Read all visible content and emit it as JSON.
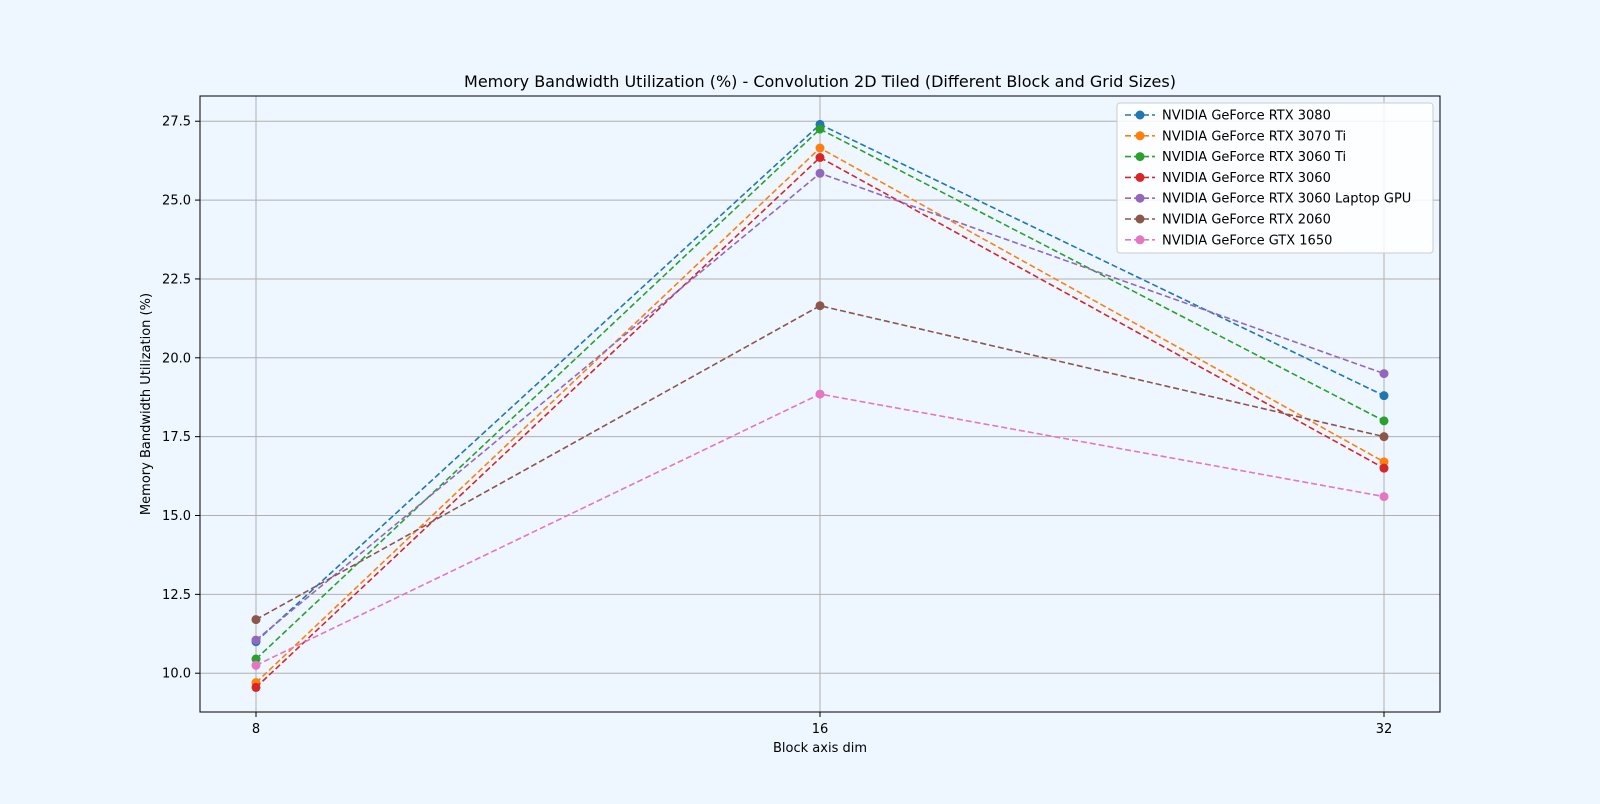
{
  "chart_data": {
    "type": "line",
    "title": "Memory Bandwidth Utilization (%) - Convolution 2D Tiled (Different Block and Grid Sizes)",
    "xlabel": "Block axis dim",
    "ylabel": "Memory Bandwidth Utilization (%)",
    "categories": [
      "8",
      "16",
      "32"
    ],
    "x": [
      8,
      16,
      32
    ],
    "ylim": [
      8.77,
      28.3
    ],
    "yticks": [
      "10.0",
      "12.5",
      "15.0",
      "17.5",
      "20.0",
      "22.5",
      "25.0",
      "27.5"
    ],
    "grid": true,
    "legend_position": "top-right",
    "line_style": "dashed",
    "marker": "circle",
    "series": [
      {
        "name": "NVIDIA GeForce RTX 3080",
        "color": "#1f77b4",
        "values": [
          11.0,
          27.4,
          18.8
        ]
      },
      {
        "name": "NVIDIA GeForce RTX 3070 Ti",
        "color": "#ff7f0e",
        "values": [
          9.7,
          26.65,
          16.7
        ]
      },
      {
        "name": "NVIDIA GeForce RTX 3060 Ti",
        "color": "#2ca02c",
        "values": [
          10.45,
          27.25,
          18.0
        ]
      },
      {
        "name": "NVIDIA GeForce RTX 3060",
        "color": "#d62728",
        "values": [
          9.55,
          26.35,
          16.5
        ]
      },
      {
        "name": "NVIDIA GeForce RTX 3060 Laptop GPU",
        "color": "#9467bd",
        "values": [
          11.05,
          25.85,
          19.5
        ]
      },
      {
        "name": "NVIDIA GeForce RTX 2060",
        "color": "#8c564b",
        "values": [
          11.7,
          21.65,
          17.5
        ]
      },
      {
        "name": "NVIDIA GeForce GTX 1650",
        "color": "#e377c2",
        "values": [
          10.25,
          18.85,
          15.6
        ]
      }
    ]
  }
}
